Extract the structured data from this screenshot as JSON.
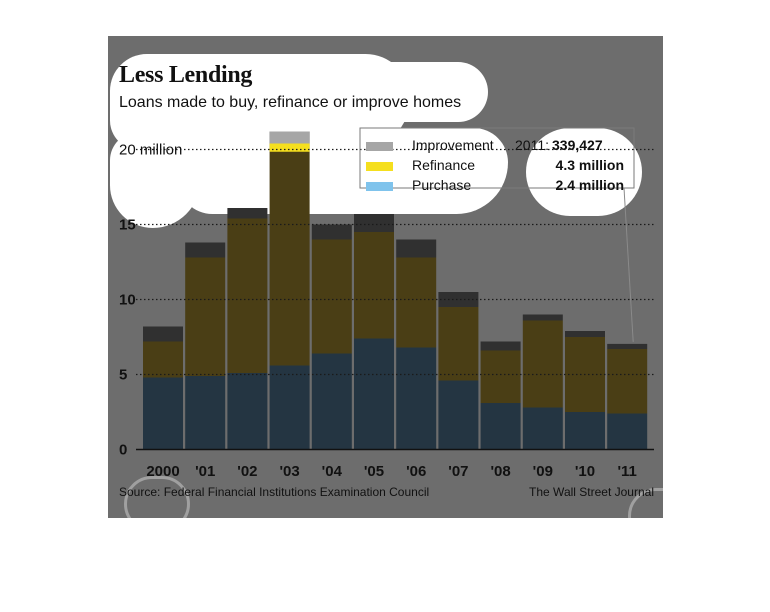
{
  "header": {
    "title": "Less Lending",
    "subtitle": "Loans made to buy, refinance or improve homes"
  },
  "footer": {
    "source": "Source: Federal Financial Institutions Examination Council",
    "credit": "The Wall Street Journal"
  },
  "legend": {
    "year_label": "2011:",
    "items": [
      {
        "name": "Improvement",
        "value": "339,427",
        "color": "#a6a6a6"
      },
      {
        "name": "Refinance",
        "value": "4.3 million",
        "color": "#f5df1e"
      },
      {
        "name": "Purchase",
        "value": "2.4 million",
        "color": "#7fc3ec"
      }
    ]
  },
  "colors": {
    "purchase": "#243542",
    "refinance": "#4a3e15",
    "improvement": "#303030",
    "refinance_2003_highlight": "#f5df1e",
    "improvement_2003_highlight": "#a6a6a6"
  },
  "chart_data": {
    "type": "bar",
    "stacked": true,
    "categories": [
      "2000",
      "'01",
      "'02",
      "'03",
      "'04",
      "'05",
      "'06",
      "'07",
      "'08",
      "'09",
      "'10",
      "'11"
    ],
    "series": [
      {
        "name": "Purchase",
        "values": [
          4.8,
          4.9,
          5.1,
          5.6,
          6.4,
          7.4,
          6.8,
          4.6,
          3.1,
          2.8,
          2.5,
          2.4
        ]
      },
      {
        "name": "Refinance",
        "values": [
          2.4,
          7.9,
          10.3,
          14.8,
          7.6,
          7.1,
          6.0,
          4.9,
          3.5,
          5.8,
          5.0,
          4.3
        ]
      },
      {
        "name": "Improvement",
        "values": [
          1.0,
          1.0,
          0.7,
          0.8,
          1.0,
          1.2,
          1.2,
          1.0,
          0.6,
          0.4,
          0.4,
          0.34
        ]
      }
    ],
    "y_ticks": [
      {
        "value": 0,
        "label": "0"
      },
      {
        "value": 5,
        "label": "5"
      },
      {
        "value": 10,
        "label": "10"
      },
      {
        "value": 15,
        "label": "15"
      },
      {
        "value": 20,
        "label": "20 million"
      }
    ],
    "ylim": [
      0,
      21.5
    ],
    "grid": true,
    "legend_position": "top-right"
  }
}
